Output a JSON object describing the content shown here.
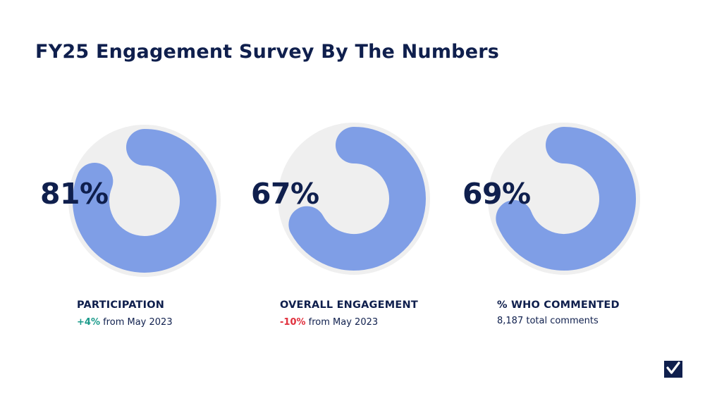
{
  "title": "FY25 Engagement Survey By The Numbers",
  "colors": {
    "track": "#efefef",
    "fill": "#7f9ee6",
    "text": "#0f1f4d",
    "positive": "#1a9a8a",
    "negative": "#e0303d"
  },
  "chart_data": [
    {
      "type": "pie",
      "title": "PARTICIPATION",
      "values": [
        81
      ],
      "value_label": "81%",
      "change_delta": "+4%",
      "change_text": "from May 2023"
    },
    {
      "type": "pie",
      "title": "OVERALL ENGAGEMENT",
      "values": [
        67
      ],
      "value_label": "67%",
      "change_delta": "-10%",
      "change_text": "from May 2023"
    },
    {
      "type": "pie",
      "title": "% WHO COMMENTED",
      "values": [
        69
      ],
      "value_label": "69%",
      "note": "8,187 total comments"
    }
  ],
  "logo": {
    "icon": "checkmark-logo-icon"
  }
}
